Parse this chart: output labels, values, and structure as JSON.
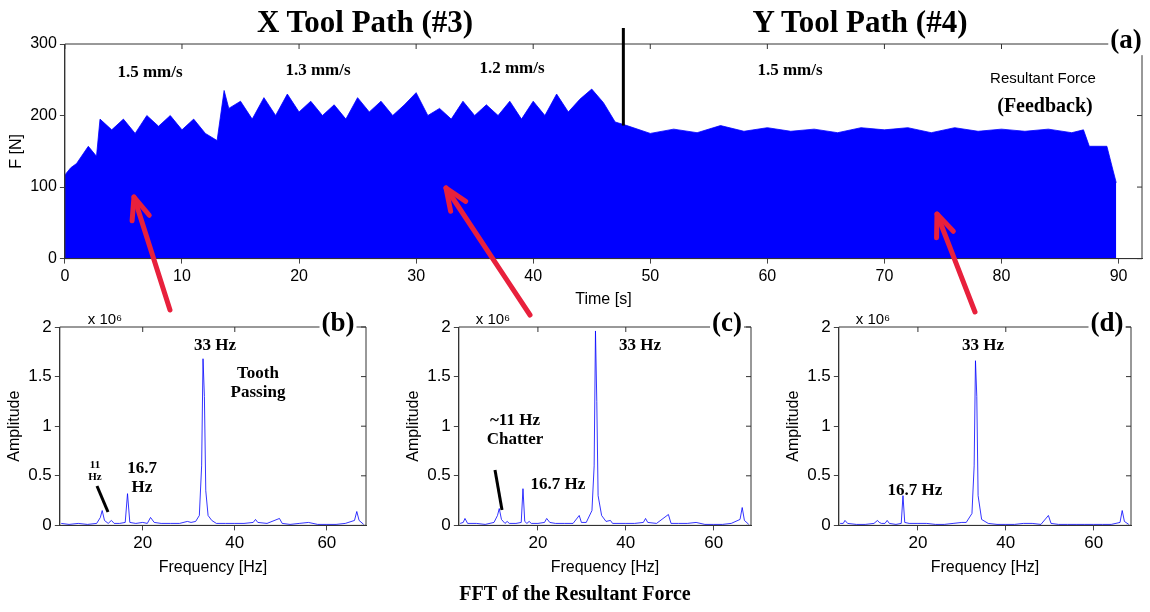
{
  "chart_data": [
    {
      "type": "area",
      "xlabel": "Time [s]",
      "ylabel": "F [N]",
      "xlim": [
        0,
        92
      ],
      "ylim": [
        0,
        300
      ],
      "xticks": [
        0,
        10,
        20,
        30,
        40,
        50,
        60,
        70,
        80,
        90
      ],
      "yticks": [
        0,
        100,
        200,
        300
      ],
      "grid": false,
      "legend": false,
      "x": [
        0,
        0.5,
        1,
        2,
        2.7,
        3,
        4,
        5,
        6,
        7,
        8,
        9,
        10,
        11,
        12,
        13,
        13.6,
        14,
        15,
        16,
        17,
        18,
        19,
        20,
        21,
        22,
        23,
        24,
        25,
        26,
        27,
        28,
        29,
        30,
        31,
        32,
        33,
        34,
        35,
        36,
        37,
        38,
        39,
        40,
        41,
        42,
        43,
        44,
        45,
        46,
        47,
        48,
        50,
        52,
        54,
        56,
        58,
        60,
        62,
        64,
        66,
        68,
        70,
        72,
        74,
        76,
        78,
        80,
        82,
        84,
        86,
        87,
        87.5,
        89,
        89.5,
        89.8
      ],
      "series": [
        {
          "color": "#0000ff",
          "values": [
            117,
            127,
            133,
            157,
            143,
            195,
            180,
            195,
            175,
            200,
            185,
            200,
            180,
            195,
            175,
            165,
            235,
            210,
            220,
            195,
            225,
            200,
            230,
            205,
            220,
            200,
            215,
            195,
            225,
            205,
            220,
            200,
            215,
            232,
            200,
            210,
            195,
            220,
            200,
            215,
            200,
            220,
            195,
            220,
            200,
            230,
            205,
            223,
            237,
            218,
            191,
            186,
            175,
            181,
            176,
            186,
            178,
            183,
            178,
            181,
            176,
            183,
            180,
            183,
            176,
            183,
            178,
            181,
            178,
            181,
            176,
            180,
            157,
            157,
            125,
            106
          ]
        }
      ],
      "ref_lines": [
        {
          "axis": "x",
          "value": 47.7,
          "label": null,
          "color": "#000000"
        }
      ],
      "annotations": [
        "X Tool Path (#3)",
        "Y Tool Path (#4)",
        "(a)",
        "1.5 mm/s",
        "1.3 mm/s",
        "1.2 mm/s",
        "1.5 mm/s",
        "Resultant Force",
        "(Feedback)"
      ]
    },
    {
      "type": "line",
      "xlabel": "Frequency [Hz]",
      "ylabel": "Amplitude",
      "xlim": [
        2,
        68.5
      ],
      "ylim": [
        0,
        2
      ],
      "xticks": [
        20,
        40,
        60
      ],
      "yticks": [
        0,
        0.5,
        1,
        1.5,
        2
      ],
      "grid": false,
      "legend": false,
      "x": [
        2.3,
        4,
        6,
        8,
        10,
        10.8,
        11.2,
        11.7,
        12.5,
        13.2,
        13.8,
        15,
        16.2,
        16.7,
        17.2,
        18.5,
        20,
        21,
        21.7,
        22.5,
        24,
        26,
        28,
        29.7,
        30.5,
        31.5,
        32.3,
        32.8,
        33.1,
        33.4,
        33.7,
        34.2,
        35,
        36,
        38,
        40,
        42,
        44,
        44.5,
        45,
        47,
        49.7,
        50.3,
        52,
        54,
        56,
        58,
        60,
        62,
        64,
        66,
        66.5,
        67,
        68
      ],
      "series": [
        {
          "color": "#0000ff",
          "values": [
            0.02,
            0.01,
            0.02,
            0.01,
            0.02,
            0.08,
            0.15,
            0.05,
            0.02,
            0.05,
            0.02,
            0.02,
            0.03,
            0.32,
            0.03,
            0.02,
            0.03,
            0.02,
            0.08,
            0.03,
            0.02,
            0.02,
            0.02,
            0.04,
            0.03,
            0.04,
            0.1,
            0.6,
            1.68,
            1.3,
            0.35,
            0.1,
            0.05,
            0.02,
            0.02,
            0.02,
            0.02,
            0.03,
            0.06,
            0.03,
            0.02,
            0.07,
            0.02,
            0.01,
            0.02,
            0.03,
            0.01,
            0.01,
            0.01,
            0.02,
            0.05,
            0.14,
            0.05,
            0.01
          ]
        }
      ],
      "annotations": [
        "x 10⁶",
        "(b)",
        "33 Hz",
        "Tooth Passing",
        "16.7 Hz",
        "11 Hz"
      ]
    },
    {
      "type": "line",
      "xlabel": "Frequency [Hz]",
      "ylabel": "Amplitude",
      "xlim": [
        2,
        68.5
      ],
      "ylim": [
        0,
        2
      ],
      "xticks": [
        20,
        40,
        60
      ],
      "yticks": [
        0,
        0.5,
        1,
        1.5,
        2
      ],
      "grid": false,
      "legend": false,
      "x": [
        2.3,
        3,
        3.4,
        4,
        6,
        8,
        10,
        10.8,
        11.2,
        11.7,
        12.5,
        13,
        13.5,
        15,
        16.2,
        16.6,
        17,
        17.5,
        18,
        18.5,
        20,
        21.5,
        22,
        22.7,
        24,
        26,
        28,
        29.4,
        29.9,
        31,
        32.3,
        32.8,
        33.1,
        33.4,
        33.7,
        34.5,
        35.5,
        36.5,
        37,
        38,
        40,
        42,
        44,
        44.5,
        45,
        47,
        49.7,
        50.3,
        52,
        54,
        56,
        58,
        60,
        62,
        64,
        66,
        66.5,
        67,
        68
      ],
      "series": [
        {
          "color": "#0000ff",
          "values": [
            0.02,
            0.03,
            0.07,
            0.02,
            0.02,
            0.01,
            0.03,
            0.1,
            0.17,
            0.06,
            0.02,
            0.04,
            0.02,
            0.02,
            0.03,
            0.37,
            0.04,
            0.02,
            0.04,
            0.02,
            0.02,
            0.03,
            0.07,
            0.03,
            0.02,
            0.02,
            0.02,
            0.1,
            0.03,
            0.03,
            0.15,
            0.6,
            1.96,
            1.25,
            0.3,
            0.1,
            0.04,
            0.05,
            0.02,
            0.02,
            0.02,
            0.02,
            0.03,
            0.07,
            0.03,
            0.02,
            0.11,
            0.02,
            0.02,
            0.02,
            0.03,
            0.01,
            0.01,
            0.01,
            0.02,
            0.06,
            0.18,
            0.05,
            0.01
          ]
        }
      ],
      "annotations": [
        "x 10⁶",
        "(c)",
        "FFT of the Resultant Force",
        "33 Hz",
        "~11 Hz Chatter",
        "16.7 Hz"
      ]
    },
    {
      "type": "line",
      "xlabel": "Frequency [Hz]",
      "ylabel": "Amplitude",
      "xlim": [
        2,
        68.5
      ],
      "ylim": [
        0,
        2
      ],
      "xticks": [
        20,
        40,
        60
      ],
      "yticks": [
        0,
        0.5,
        1,
        1.5,
        2
      ],
      "grid": false,
      "legend": false,
      "x": [
        2.3,
        3,
        3.4,
        4,
        6,
        8,
        10,
        10.8,
        11.2,
        11.7,
        12.5,
        13,
        13.5,
        15,
        16.2,
        16.6,
        17,
        18,
        20,
        22,
        24,
        26,
        28,
        30,
        31,
        32.3,
        32.8,
        33.1,
        33.4,
        33.7,
        34.5,
        36,
        38,
        40,
        42,
        44,
        46,
        48,
        49.7,
        50.3,
        52,
        54,
        56,
        58,
        60,
        62,
        64,
        66,
        66.5,
        67,
        68
      ],
      "series": [
        {
          "color": "#0000ff",
          "values": [
            0.02,
            0.02,
            0.05,
            0.02,
            0.01,
            0.01,
            0.02,
            0.05,
            0.03,
            0.02,
            0.02,
            0.05,
            0.02,
            0.01,
            0.02,
            0.3,
            0.03,
            0.02,
            0.02,
            0.02,
            0.01,
            0.01,
            0.02,
            0.03,
            0.03,
            0.12,
            0.6,
            1.66,
            1.3,
            0.3,
            0.06,
            0.02,
            0.01,
            0.01,
            0.01,
            0.02,
            0.02,
            0.01,
            0.1,
            0.02,
            0.01,
            0.01,
            0.01,
            0.01,
            0.01,
            0.01,
            0.01,
            0.03,
            0.15,
            0.04,
            0.01
          ]
        }
      ],
      "annotations": [
        "x 10⁶",
        "(d)",
        "33 Hz",
        "16.7 Hz"
      ]
    }
  ]
}
